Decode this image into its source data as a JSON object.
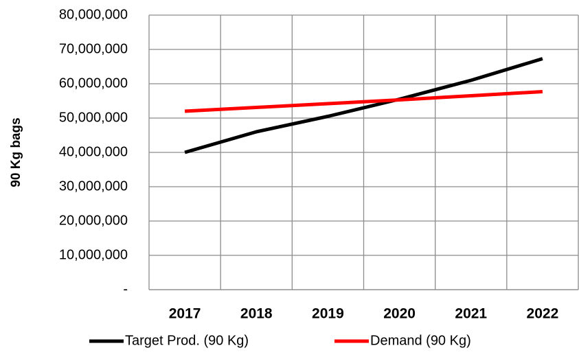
{
  "chart_data": {
    "type": "line",
    "y_label": "90 Kg bags",
    "categories": [
      "2017",
      "2018",
      "2019",
      "2020",
      "2021",
      "2022"
    ],
    "series": [
      {
        "name": "Target Prod. (90 Kg)",
        "color": "#000000",
        "values": [
          40000000,
          46000000,
          50500000,
          55500000,
          61000000,
          67300000
        ]
      },
      {
        "name": "Demand (90 Kg)",
        "color": "#ff0000",
        "values": [
          52000000,
          53100000,
          54200000,
          55300000,
          56500000,
          57700000
        ]
      }
    ],
    "ylim": [
      0,
      80000000
    ],
    "yticks": [
      {
        "value": 0,
        "label": "-"
      },
      {
        "value": 10000000,
        "label": "10,000,000"
      },
      {
        "value": 20000000,
        "label": "20,000,000"
      },
      {
        "value": 30000000,
        "label": "30,000,000"
      },
      {
        "value": 40000000,
        "label": "40,000,000"
      },
      {
        "value": 50000000,
        "label": "50,000,000"
      },
      {
        "value": 60000000,
        "label": "60,000,000"
      },
      {
        "value": 70000000,
        "label": "70,000,000"
      },
      {
        "value": 80000000,
        "label": "80,000,000"
      }
    ],
    "grid": true,
    "legend": "bottom"
  }
}
